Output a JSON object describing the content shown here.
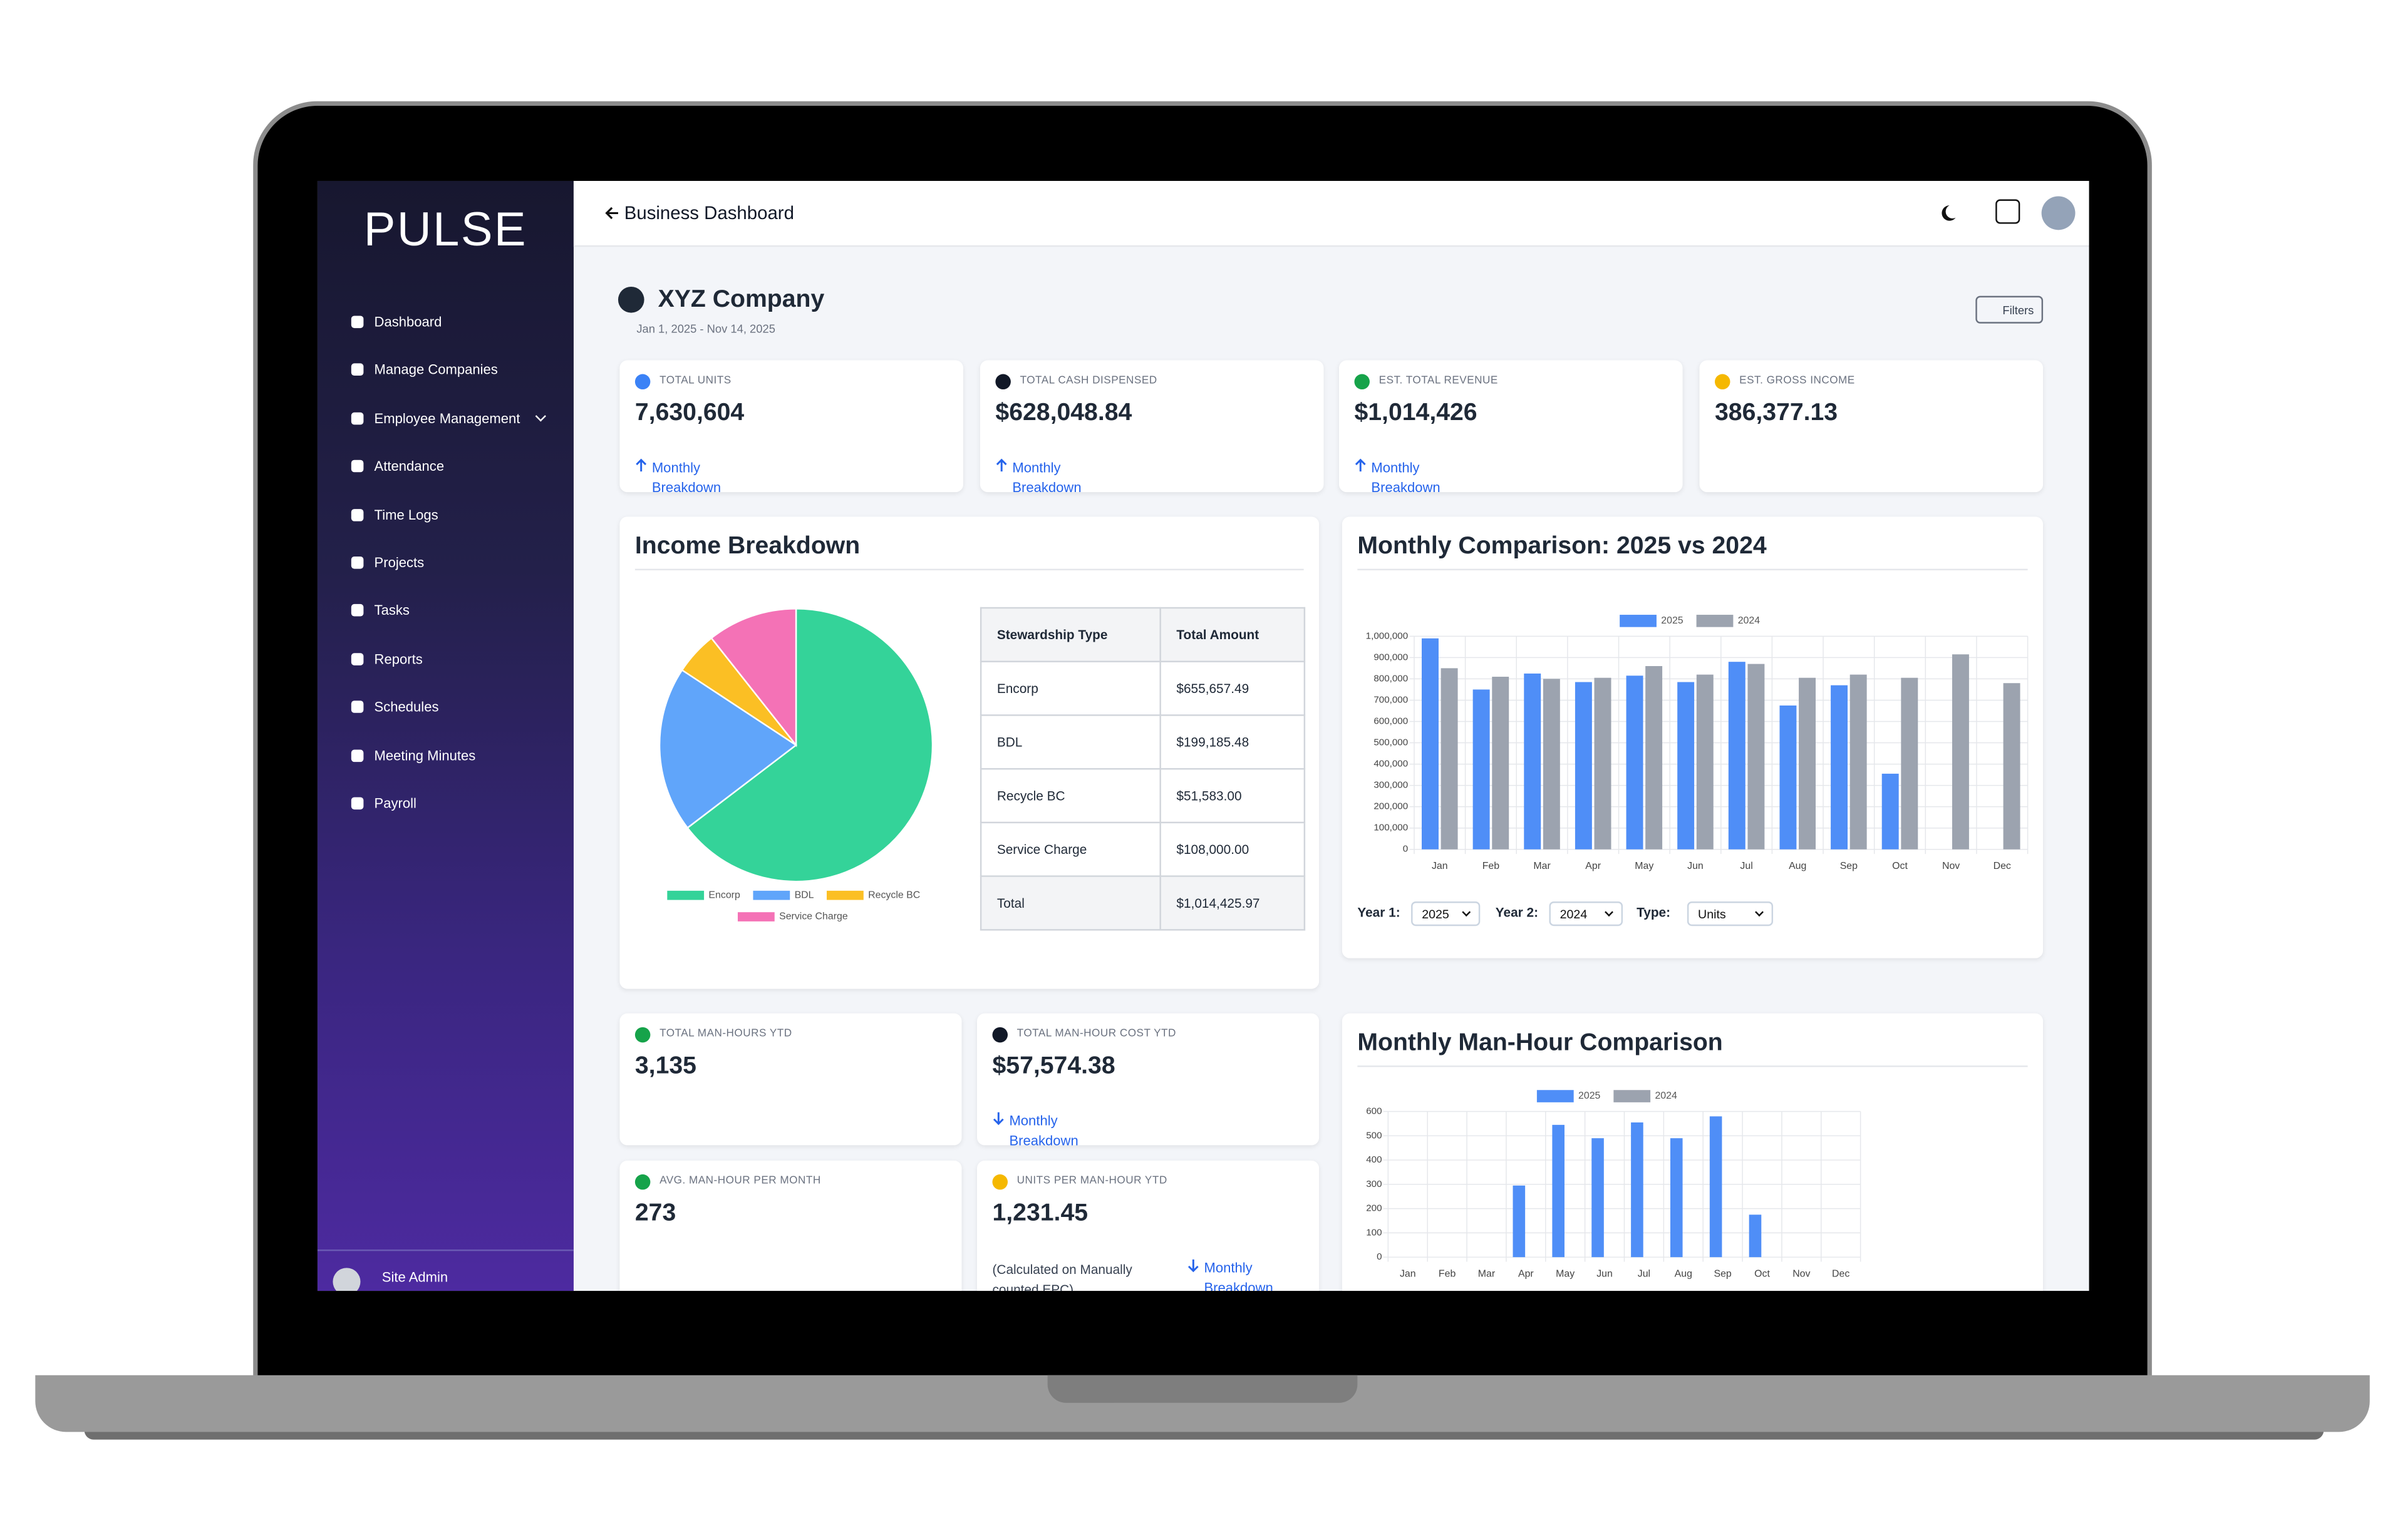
{
  "sidebar": {
    "logo": "PULSE",
    "menu": [
      "Dashboard",
      "Manage Companies",
      "Employee Management",
      "Attendance",
      "Time Logs",
      "Projects",
      "Tasks",
      "Reports",
      "Schedules",
      "Meeting Minutes",
      "Payroll"
    ],
    "user": "Site Admin"
  },
  "header": {
    "title": "Business Dashboard"
  },
  "company": {
    "name": "XYZ Company",
    "date_range": "Jan 1, 2025 - Nov 14, 2025",
    "filters_button": "Filters"
  },
  "kpis": [
    {
      "label": "TOTAL UNITS",
      "value": "7,630,604",
      "link": "Monthly Breakdown"
    },
    {
      "label": "TOTAL CASH DISPENSED",
      "value": "$628,048.84",
      "link": "Monthly Breakdown"
    },
    {
      "label": "EST. TOTAL REVENUE",
      "value": "$1,014,426",
      "link": "Monthly Breakdown"
    },
    {
      "label": "EST. GROSS INCOME",
      "value": "386,377.13"
    }
  ],
  "income_breakdown": {
    "title": "Income Breakdown",
    "chart": {
      "type": "pie",
      "categories": [
        "Encorp",
        "BDL",
        "Recycle BC",
        "Service Charge"
      ],
      "values": [
        655657.49,
        199185.48,
        51583,
        108000
      ],
      "colors": [
        "#34d399",
        "#60a5fa",
        "#fbbf24",
        "#f472b6"
      ]
    },
    "table": {
      "columns": [
        "Stewardship Type",
        "Total Amount"
      ],
      "rows": [
        [
          "Encorp",
          "$655,657.49"
        ],
        [
          "BDL",
          "$199,185.48"
        ],
        [
          "Recycle BC",
          "$51,583.00"
        ],
        [
          "Service Charge",
          "$108,000.00"
        ]
      ],
      "total": [
        "Total",
        "$1,014,425.97"
      ]
    }
  },
  "monthly_comparison": {
    "title": "Monthly Comparison: 2025 vs 2024",
    "chart": {
      "type": "bar",
      "categories": [
        "Jan",
        "Feb",
        "Mar",
        "Apr",
        "May",
        "Jun",
        "Jul",
        "Aug",
        "Sep",
        "Oct",
        "Nov",
        "Dec"
      ],
      "series": [
        {
          "name": "2025",
          "color": "#4f8ef7",
          "values": [
            990000,
            750000,
            825000,
            785000,
            815000,
            785000,
            880000,
            675000,
            770000,
            355000,
            null,
            null
          ]
        },
        {
          "name": "2024",
          "color": "#9ca3af",
          "values": [
            850000,
            810000,
            800000,
            805000,
            860000,
            820000,
            870000,
            805000,
            820000,
            805000,
            915000,
            780000
          ]
        }
      ],
      "ylim": [
        0,
        1000000
      ],
      "yticks": [
        0,
        {
          "value": 100000,
          "label": "100,000"
        },
        {
          "value": 200000,
          "label": "200,000"
        },
        {
          "value": 300000,
          "label": "300,000"
        },
        {
          "value": 400000,
          "label": "400,000"
        },
        {
          "value": 500000,
          "label": "500,000"
        },
        {
          "value": 600000,
          "label": "600,000"
        },
        {
          "value": 700000,
          "label": "700,000"
        },
        {
          "value": 800000,
          "label": "800,000"
        },
        {
          "value": 900000,
          "label": "900,000"
        },
        {
          "value": 1000000,
          "label": "1,000,000"
        }
      ],
      "grid": true
    },
    "controls": [
      {
        "label": "Year 1:",
        "value": "2025"
      },
      {
        "label": "Year 2:",
        "value": "2024"
      },
      {
        "label": "Type:",
        "value": "Units"
      }
    ]
  },
  "man_hours": {
    "cards": [
      {
        "label": "TOTAL MAN-HOURS YTD",
        "value": "3,135"
      },
      {
        "label": "TOTAL MAN-HOUR COST YTD",
        "value": "$57,574.38",
        "link": "Monthly Breakdown"
      },
      {
        "label": "AVG. MAN-HOUR PER MONTH",
        "value": "273"
      },
      {
        "label": "UNITS PER MAN-HOUR YTD",
        "value": "1,231.45",
        "note": "(Calculated on Manually counted EPC)",
        "link": "Monthly Breakdown"
      }
    ],
    "title": "Monthly Man-Hour Comparison",
    "chart": {
      "type": "bar",
      "categories": [
        "Jan",
        "Feb",
        "Mar",
        "Apr",
        "May",
        "Jun",
        "Jul",
        "Aug",
        "Sep",
        "Oct",
        "Nov",
        "Dec"
      ],
      "series": [
        {
          "name": "2025",
          "color": "#4f8ef7",
          "values": [
            null,
            null,
            null,
            295,
            545,
            490,
            555,
            490,
            580,
            175,
            null,
            null
          ]
        },
        {
          "name": "2024",
          "color": "#9ca3af",
          "values": [
            null,
            null,
            null,
            null,
            null,
            null,
            null,
            null,
            null,
            null,
            null,
            null
          ]
        }
      ],
      "ylim": [
        0,
        600
      ],
      "yticks": [
        0,
        100,
        200,
        300,
        400,
        500,
        600
      ],
      "grid": true
    }
  }
}
